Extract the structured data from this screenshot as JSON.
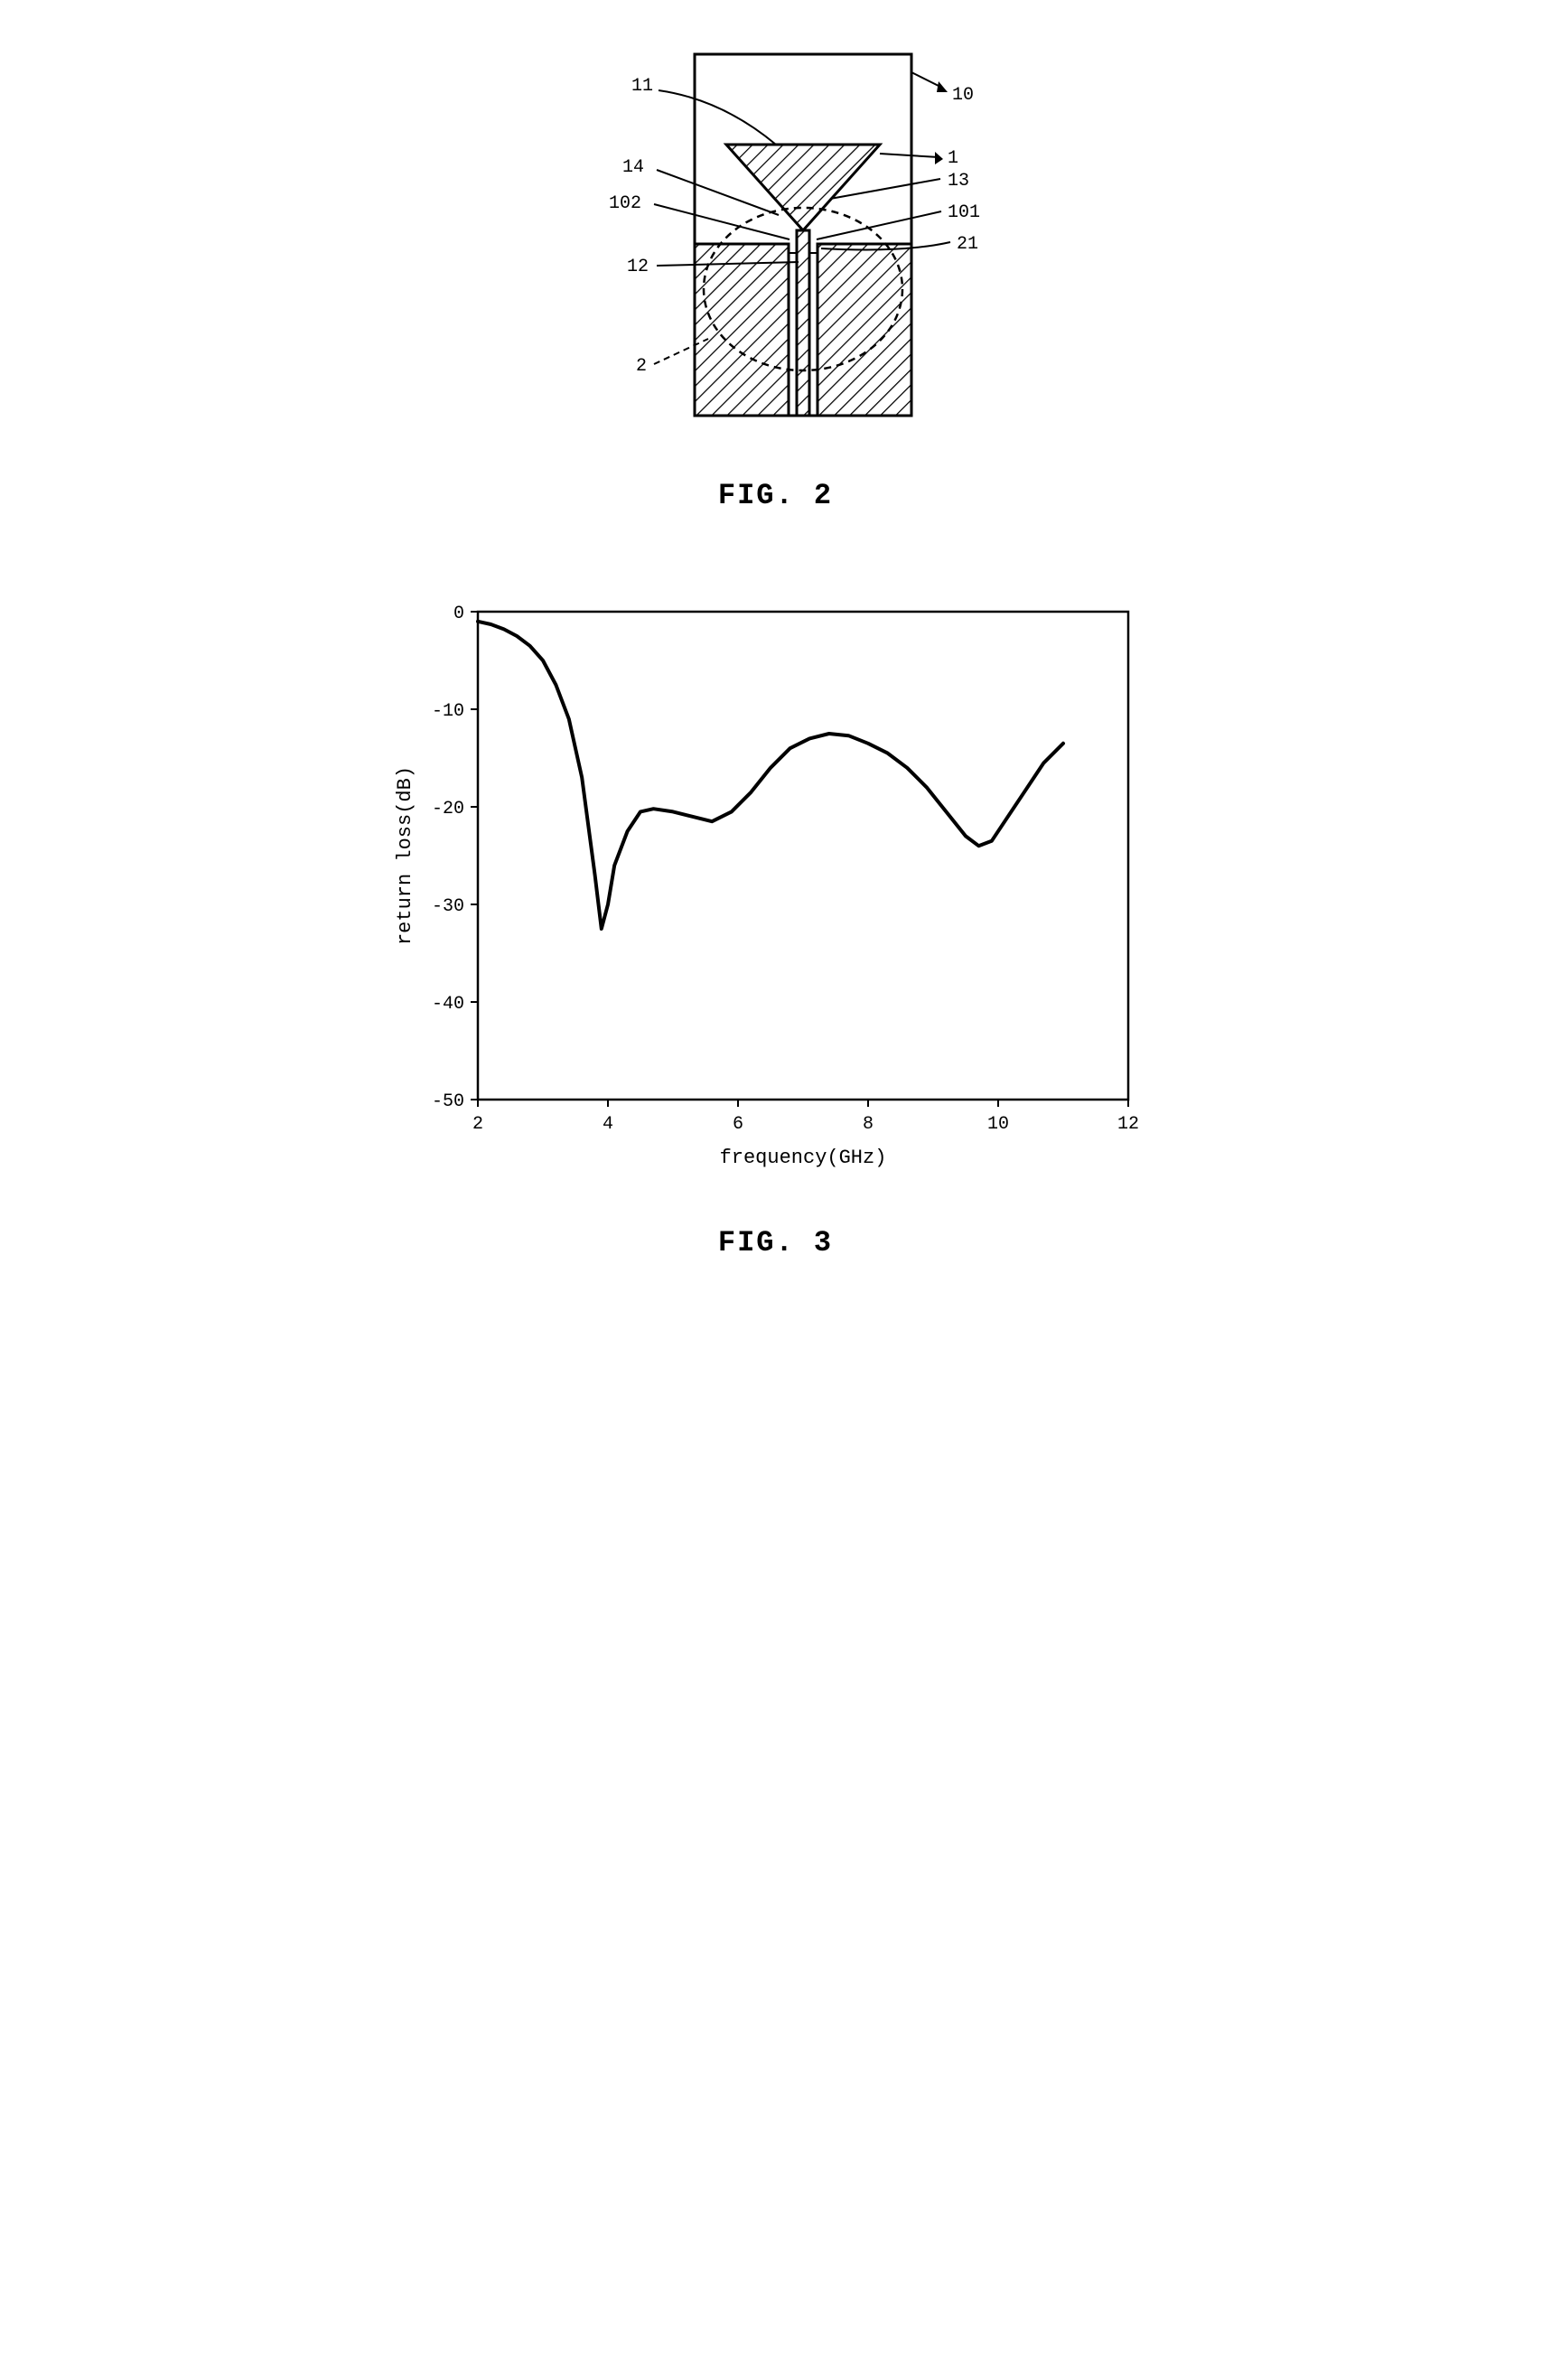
{
  "fig2": {
    "caption": "FIG. 2",
    "labels": {
      "l11": "11",
      "l10": "10",
      "l14": "14",
      "l1": "1",
      "l13": "13",
      "l102": "102",
      "l101": "101",
      "l12": "12",
      "l21": "21",
      "l2": "2"
    },
    "colors": {
      "stroke": "#000000",
      "fill": "#ffffff",
      "hatch": "#000000"
    }
  },
  "fig3": {
    "caption": "FIG. 3",
    "type": "line",
    "xlabel": "frequency(GHz)",
    "ylabel": "return loss(dB)",
    "xlim": [
      2,
      12
    ],
    "ylim": [
      -50,
      0
    ],
    "xticks": [
      2,
      4,
      6,
      8,
      10,
      12
    ],
    "yticks": [
      0,
      -10,
      -20,
      -30,
      -40,
      -50
    ],
    "line_color": "#000000",
    "line_width": 3,
    "background_color": "#ffffff",
    "axis_color": "#000000",
    "tick_fontsize": 20,
    "label_fontsize": 22,
    "data": [
      {
        "x": 2.0,
        "y": -1.0
      },
      {
        "x": 2.2,
        "y": -1.3
      },
      {
        "x": 2.4,
        "y": -1.8
      },
      {
        "x": 2.6,
        "y": -2.5
      },
      {
        "x": 2.8,
        "y": -3.5
      },
      {
        "x": 3.0,
        "y": -5.0
      },
      {
        "x": 3.2,
        "y": -7.5
      },
      {
        "x": 3.4,
        "y": -11.0
      },
      {
        "x": 3.6,
        "y": -17.0
      },
      {
        "x": 3.8,
        "y": -27.0
      },
      {
        "x": 3.9,
        "y": -32.5
      },
      {
        "x": 4.0,
        "y": -30.0
      },
      {
        "x": 4.1,
        "y": -26.0
      },
      {
        "x": 4.3,
        "y": -22.5
      },
      {
        "x": 4.5,
        "y": -20.5
      },
      {
        "x": 4.7,
        "y": -20.2
      },
      {
        "x": 5.0,
        "y": -20.5
      },
      {
        "x": 5.3,
        "y": -21.0
      },
      {
        "x": 5.6,
        "y": -21.5
      },
      {
        "x": 5.9,
        "y": -20.5
      },
      {
        "x": 6.2,
        "y": -18.5
      },
      {
        "x": 6.5,
        "y": -16.0
      },
      {
        "x": 6.8,
        "y": -14.0
      },
      {
        "x": 7.1,
        "y": -13.0
      },
      {
        "x": 7.4,
        "y": -12.5
      },
      {
        "x": 7.7,
        "y": -12.7
      },
      {
        "x": 8.0,
        "y": -13.5
      },
      {
        "x": 8.3,
        "y": -14.5
      },
      {
        "x": 8.6,
        "y": -16.0
      },
      {
        "x": 8.9,
        "y": -18.0
      },
      {
        "x": 9.2,
        "y": -20.5
      },
      {
        "x": 9.5,
        "y": -23.0
      },
      {
        "x": 9.7,
        "y": -24.0
      },
      {
        "x": 9.9,
        "y": -23.5
      },
      {
        "x": 10.1,
        "y": -21.5
      },
      {
        "x": 10.4,
        "y": -18.5
      },
      {
        "x": 10.7,
        "y": -15.5
      },
      {
        "x": 11.0,
        "y": -13.5
      }
    ]
  }
}
